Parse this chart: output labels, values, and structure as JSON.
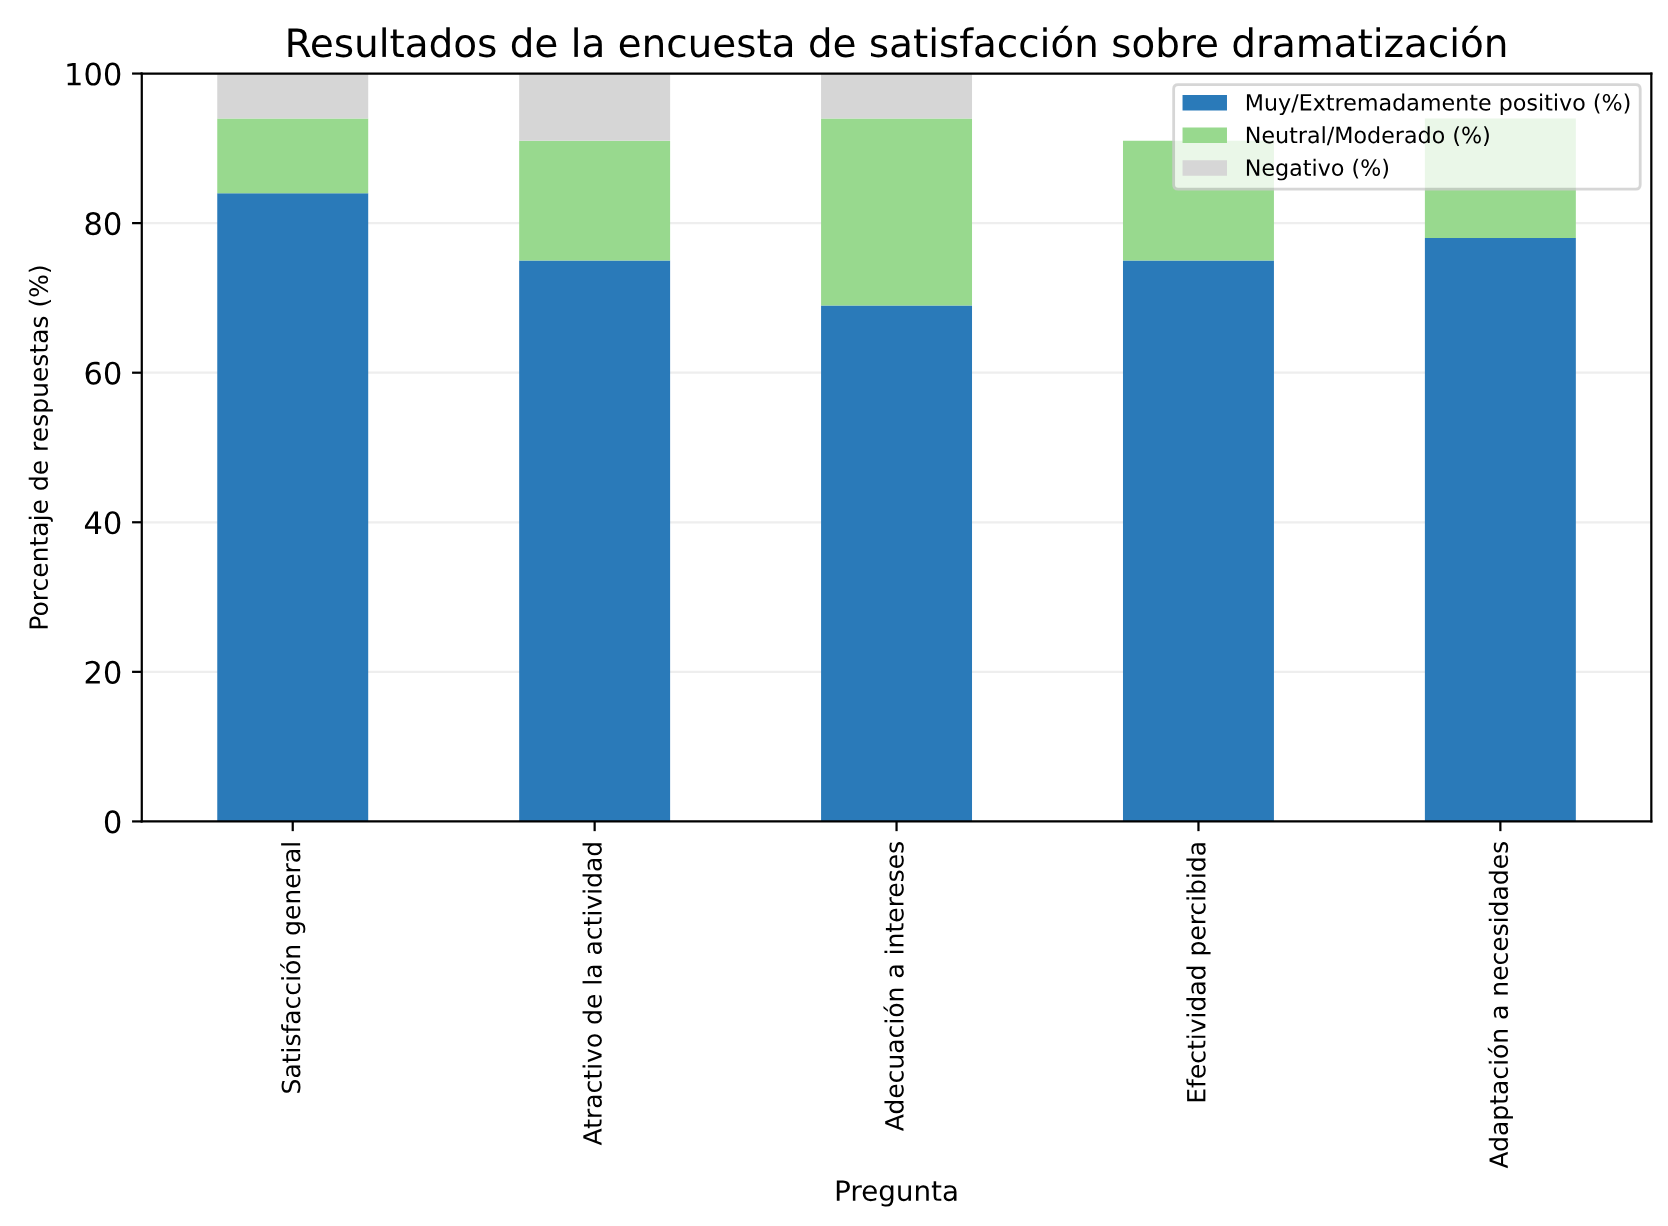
{
  "chart_data": {
    "type": "bar",
    "stacked": true,
    "title": "Resultados de la encuesta de satisfacción sobre dramatización",
    "xlabel": "Pregunta",
    "ylabel": "Porcentaje de respuestas (%)",
    "categories": [
      "Satisfacción general",
      "Atractivo de la actividad",
      "Adecuación a intereses",
      "Efectividad percibida",
      "Adaptación a necesidades"
    ],
    "series": [
      {
        "name": "Muy/Extremadamente positivo (%)",
        "color": "#2a7ab9",
        "values": [
          84,
          75,
          69,
          75,
          78
        ]
      },
      {
        "name": "Neutral/Moderado (%)",
        "color": "#98d98e",
        "values": [
          10,
          16,
          25,
          16,
          16
        ]
      },
      {
        "name": "Negativo (%)",
        "color": "#d6d6d6",
        "values": [
          6,
          9,
          6,
          null,
          null
        ]
      }
    ],
    "ylim": [
      0,
      100
    ],
    "yticks": [
      0,
      20,
      40,
      60,
      80,
      100
    ],
    "grid": "y",
    "legend": "top right"
  }
}
